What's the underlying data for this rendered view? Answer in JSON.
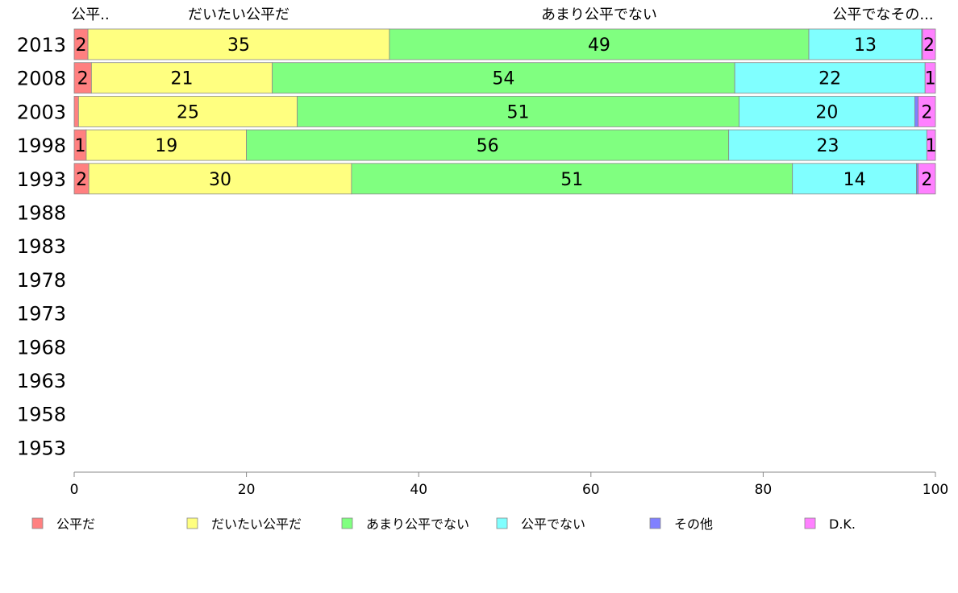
{
  "chart_data": {
    "type": "bar",
    "orientation": "horizontal",
    "stacked": true,
    "categories": [
      "2013",
      "2008",
      "2003",
      "1998",
      "1993",
      "1988",
      "1983",
      "1978",
      "1973",
      "1968",
      "1963",
      "1958",
      "1953"
    ],
    "series": [
      {
        "name": "公平だ",
        "color": "#ff8080",
        "values": [
          1.6,
          2,
          0.5,
          1.4,
          1.7,
          null,
          null,
          null,
          null,
          null,
          null,
          null,
          null
        ],
        "labels": [
          "2",
          "2",
          "",
          "1",
          "2",
          "",
          "",
          "",
          "",
          "",
          "",
          "",
          ""
        ]
      },
      {
        "name": "だいたい公平だ",
        "color": "#ffff80",
        "values": [
          35,
          21,
          25.4,
          18.6,
          30.5,
          null,
          null,
          null,
          null,
          null,
          null,
          null,
          null
        ],
        "labels": [
          "35",
          "21",
          "25",
          "19",
          "30",
          "",
          "",
          "",
          "",
          "",
          "",
          "",
          ""
        ]
      },
      {
        "name": "あまり公平でない",
        "color": "#80ff80",
        "values": [
          48.7,
          53.7,
          51.3,
          56,
          51.2,
          null,
          null,
          null,
          null,
          null,
          null,
          null,
          null
        ],
        "labels": [
          "49",
          "54",
          "51",
          "56",
          "51",
          "",
          "",
          "",
          "",
          "",
          "",
          "",
          ""
        ]
      },
      {
        "name": "公平でない",
        "color": "#80ffff",
        "values": [
          13.1,
          22.1,
          20.4,
          23,
          14.4,
          null,
          null,
          null,
          null,
          null,
          null,
          null,
          null
        ],
        "labels": [
          "13",
          "22",
          "20",
          "23",
          "14",
          "",
          "",
          "",
          "",
          "",
          "",
          "",
          ""
        ]
      },
      {
        "name": "その他",
        "color": "#8080ff",
        "values": [
          0.1,
          0,
          0.4,
          0,
          0.2,
          null,
          null,
          null,
          null,
          null,
          null,
          null,
          null
        ],
        "labels": [
          "",
          "",
          "",
          "",
          "",
          "",
          "",
          "",
          "",
          "",
          "",
          "",
          ""
        ]
      },
      {
        "name": "D.K.",
        "color": "#ff80ff",
        "values": [
          1.5,
          1.2,
          2,
          1,
          2,
          null,
          null,
          null,
          null,
          null,
          null,
          null,
          null
        ],
        "labels": [
          "2",
          "1",
          "2",
          "1",
          "2",
          "",
          "",
          "",
          "",
          "",
          "",
          "",
          ""
        ]
      }
    ],
    "top_labels": [
      "公平..",
      "だいたい公平だ",
      "あまり公平でない",
      "公平でなその..."
    ],
    "xlim": [
      0,
      100
    ],
    "xticks": [
      0,
      20,
      40,
      60,
      80,
      100
    ],
    "grid": false,
    "legend_position": "bottom"
  }
}
